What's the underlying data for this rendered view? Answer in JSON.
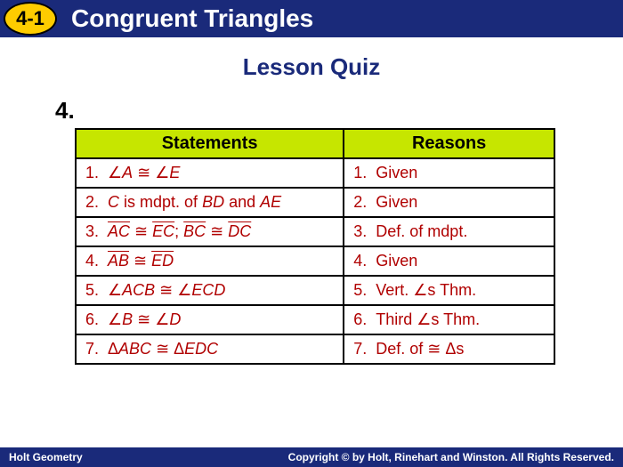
{
  "header": {
    "lesson_number": "4-1",
    "chapter_title": "Congruent Triangles"
  },
  "quiz": {
    "title": "Lesson Quiz",
    "question_number": "4."
  },
  "table": {
    "col_statements": "Statements",
    "col_reasons": "Reasons",
    "header_bg": "#c6e600",
    "cell_text_color": "#b00000",
    "border_color": "#000000",
    "rows": [
      {
        "n": "1.",
        "stmt_html": "∠<span class='it'>A</span> ≅ ∠<span class='it'>E</span>",
        "reason": "Given"
      },
      {
        "n": "2.",
        "stmt_html": "<span class='it'>C</span> is mdpt. of <span class='it'>BD</span> and <span class='it'>AE</span>",
        "reason": "Given"
      },
      {
        "n": "3.",
        "stmt_html": "<span class='ovl'>AC</span> ≅ <span class='ovl'>EC</span>; <span class='ovl'>BC</span> ≅ <span class='ovl'>DC</span>",
        "reason": "Def. of mdpt."
      },
      {
        "n": "4.",
        "stmt_html": "<span class='ovl'>AB</span> ≅ <span class='ovl'>ED</span>",
        "reason": "Given"
      },
      {
        "n": "5.",
        "stmt_html": "∠<span class='it'>ACB</span> ≅ ∠<span class='it'>ECD</span>",
        "reason": "Vert. ∠s Thm."
      },
      {
        "n": "6.",
        "stmt_html": "∠<span class='it'>B</span> ≅ ∠<span class='it'>D</span>",
        "reason": "Third ∠s Thm."
      },
      {
        "n": "7.",
        "stmt_html": "Δ<span class='it'>ABC</span> ≅ Δ<span class='it'>EDC</span>",
        "reason": "Def. of ≅ Δs"
      }
    ]
  },
  "footer": {
    "left": "Holt Geometry",
    "right": "Copyright © by Holt, Rinehart and Winston. All Rights Reserved."
  },
  "colors": {
    "header_bg": "#1a2a7a",
    "badge_bg": "#fecc00",
    "title_color": "#1a2a7a"
  }
}
